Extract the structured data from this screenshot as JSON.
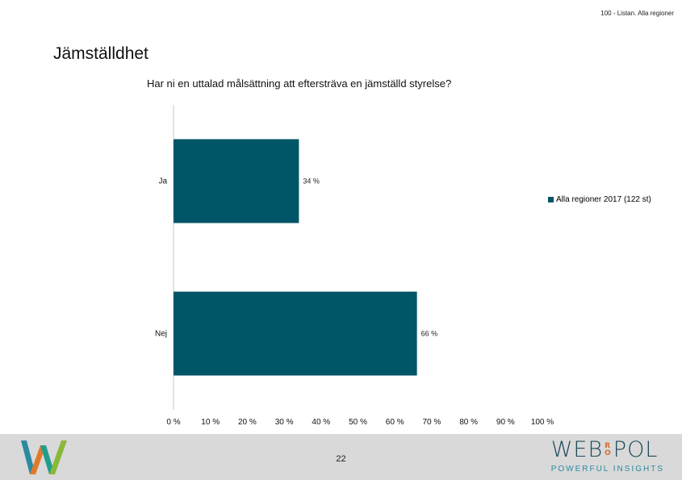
{
  "header": {
    "top_right": "100 - Listan. Alla regioner",
    "title": "Jämställdhet"
  },
  "chart_data": {
    "type": "bar",
    "orientation": "horizontal",
    "title": "Har ni en uttalad målsättning att eftersträva en jämställd styrelse?",
    "categories": [
      "Ja",
      "Nej"
    ],
    "series": [
      {
        "name": "Alla regioner 2017 (122 st)",
        "values": [
          34,
          66
        ],
        "color": "#005566"
      }
    ],
    "data_labels": [
      "34 %",
      "66 %"
    ],
    "xlim": [
      0,
      100
    ],
    "x_ticks": [
      0,
      10,
      20,
      30,
      40,
      50,
      60,
      70,
      80,
      90,
      100
    ],
    "x_tick_labels": [
      "0 %",
      "10 %",
      "20 %",
      "30 %",
      "40 %",
      "50 %",
      "60 %",
      "70 %",
      "80 %",
      "90 %",
      "100 %"
    ],
    "grid": false,
    "legend_position": "right"
  },
  "footer": {
    "page_number": "22",
    "brand_left": "WEB",
    "brand_ro": [
      "R",
      "O"
    ],
    "brand_right": "POL",
    "brand_tagline": "POWERFUL INSIGHTS"
  },
  "colors": {
    "bar": "#005566",
    "footer_bg": "#d9d9d9"
  }
}
